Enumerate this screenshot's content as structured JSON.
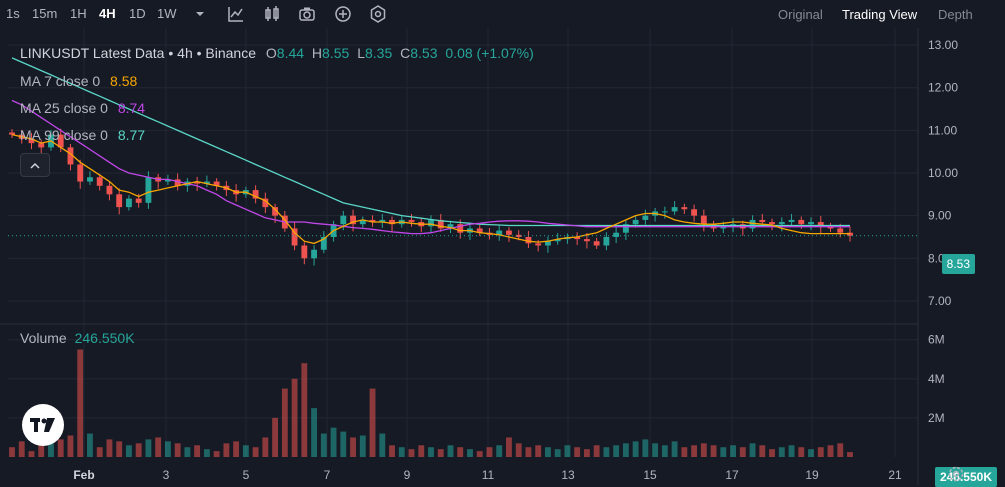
{
  "toolbar": {
    "timeframes": [
      "1s",
      "15m",
      "1H",
      "4H",
      "1D",
      "1W"
    ],
    "active_timeframe": "4H",
    "dropdown_icon": "chevron-down-icon",
    "tools": [
      "chart-type-icon",
      "bar-style-icon",
      "camera-icon",
      "add-indicator-icon",
      "settings-icon"
    ],
    "views": [
      "Original",
      "Trading View",
      "Depth"
    ],
    "active_view": "Trading View"
  },
  "legend": {
    "title": "LINKUSDT Latest Data • 4h • Binance",
    "o_label": "O",
    "o_value": "8.44",
    "h_label": "H",
    "h_value": "8.55",
    "l_label": "L",
    "l_value": "8.35",
    "c_label": "C",
    "c_value": "8.53",
    "change": "0.08 (+1.07%)",
    "ma7_label": "MA 7 close 0",
    "ma7_value": "8.58",
    "ma25_label": "MA 25 close 0",
    "ma25_value": "8.74",
    "ma99_label": "MA 99 close 0",
    "ma99_value": "8.77",
    "collapse_icon": "chevron-up-icon"
  },
  "volume": {
    "label": "Volume",
    "value": "246.550K"
  },
  "price_axis": [
    "13.00",
    "12.00",
    "11.00",
    "10.00",
    "9.00",
    "8.00",
    "7.00"
  ],
  "volume_axis": [
    "6M",
    "4M",
    "2M"
  ],
  "current_price": "8.53",
  "current_volume": "246.550K",
  "time_axis": [
    "Feb",
    "3",
    "5",
    "7",
    "9",
    "11",
    "13",
    "15",
    "17",
    "19",
    "21"
  ],
  "colors": {
    "up": "#26a69a",
    "down": "#ef5350",
    "ma7": "#f7a600",
    "ma25": "#c147e9",
    "ma99": "#5ad7c7",
    "background": "#161a25"
  },
  "chart_data": {
    "type": "candlestick",
    "symbol": "LINKUSDT",
    "interval": "4h",
    "ylim": [
      6.6,
      13.4
    ],
    "closes": [
      10.9,
      10.8,
      10.7,
      10.6,
      10.9,
      10.6,
      10.2,
      9.8,
      9.9,
      9.7,
      9.5,
      9.2,
      9.4,
      9.3,
      9.9,
      9.8,
      9.85,
      9.7,
      9.8,
      9.75,
      9.8,
      9.7,
      9.6,
      9.5,
      9.6,
      9.4,
      9.2,
      9.0,
      8.7,
      8.3,
      8.0,
      8.2,
      8.5,
      8.8,
      9.0,
      8.8,
      8.9,
      8.85,
      8.9,
      8.8,
      8.9,
      8.85,
      8.75,
      8.9,
      8.7,
      8.8,
      8.6,
      8.7,
      8.6,
      8.55,
      8.65,
      8.55,
      8.5,
      8.35,
      8.3,
      8.4,
      8.45,
      8.5,
      8.45,
      8.4,
      8.3,
      8.5,
      8.6,
      8.8,
      8.9,
      9.0,
      9.1,
      9.1,
      9.2,
      9.15,
      9.0,
      8.8,
      8.7,
      8.75,
      8.8,
      8.7,
      8.9,
      8.85,
      8.8,
      8.85,
      8.9,
      8.8,
      8.85,
      8.75,
      8.7,
      8.6,
      8.53
    ],
    "ma7": [
      10.9,
      10.85,
      10.8,
      10.7,
      10.75,
      10.6,
      10.45,
      10.25,
      10.1,
      9.95,
      9.8,
      9.6,
      9.55,
      9.45,
      9.55,
      9.6,
      9.65,
      9.7,
      9.75,
      9.8,
      9.75,
      9.7,
      9.65,
      9.55,
      9.55,
      9.45,
      9.35,
      9.15,
      8.9,
      8.6,
      8.4,
      8.35,
      8.45,
      8.65,
      8.75,
      8.85,
      8.9,
      8.85,
      8.85,
      8.82,
      8.85,
      8.82,
      8.8,
      8.8,
      8.75,
      8.72,
      8.65,
      8.65,
      8.6,
      8.58,
      8.55,
      8.5,
      8.45,
      8.4,
      8.38,
      8.4,
      8.45,
      8.48,
      8.5,
      8.55,
      8.6,
      8.7,
      8.8,
      8.9,
      9.0,
      9.05,
      9.05,
      9.0,
      8.9,
      8.85,
      8.82,
      8.8,
      8.8,
      8.82,
      8.85,
      8.85,
      8.82,
      8.8,
      8.78,
      8.7,
      8.65,
      8.6,
      8.58,
      8.58,
      8.58,
      8.58,
      8.58
    ],
    "ma25": [
      11.7,
      11.6,
      11.45,
      11.3,
      11.15,
      11.0,
      10.85,
      10.7,
      10.55,
      10.4,
      10.25,
      10.1,
      10.0,
      9.95,
      9.9,
      9.85,
      9.85,
      9.8,
      9.75,
      9.7,
      9.6,
      9.5,
      9.35,
      9.25,
      9.15,
      9.05,
      8.95,
      8.9,
      8.85,
      8.85,
      8.85,
      8.82,
      8.8,
      8.78,
      8.75,
      8.72,
      8.7,
      8.68,
      8.65,
      8.62,
      8.6,
      8.58,
      8.58,
      8.6,
      8.65,
      8.7,
      8.75,
      8.8,
      8.82,
      8.85,
      8.87,
      8.88,
      8.88,
      8.87,
      8.85,
      8.82,
      8.8,
      8.78,
      8.76,
      8.74,
      8.74,
      8.74,
      8.74,
      8.74,
      8.74,
      8.74,
      8.74,
      8.74,
      8.74,
      8.74,
      8.74,
      8.74,
      8.74,
      8.74,
      8.74,
      8.74,
      8.74,
      8.74,
      8.74,
      8.74,
      8.74,
      8.74,
      8.74,
      8.74,
      8.74,
      8.74,
      8.74
    ],
    "ma99": [
      12.7,
      12.6,
      12.5,
      12.4,
      12.3,
      12.2,
      12.1,
      12.0,
      11.9,
      11.8,
      11.7,
      11.6,
      11.5,
      11.4,
      11.3,
      11.2,
      11.1,
      11.0,
      10.9,
      10.8,
      10.7,
      10.6,
      10.5,
      10.4,
      10.3,
      10.2,
      10.1,
      10.0,
      9.9,
      9.8,
      9.7,
      9.6,
      9.5,
      9.4,
      9.3,
      9.25,
      9.2,
      9.15,
      9.1,
      9.05,
      9.0,
      8.97,
      8.94,
      8.91,
      8.88,
      8.86,
      8.84,
      8.82,
      8.8,
      8.79,
      8.78,
      8.77,
      8.77,
      8.77,
      8.77,
      8.77,
      8.77,
      8.77,
      8.77,
      8.77,
      8.77,
      8.77,
      8.77,
      8.77,
      8.77,
      8.77,
      8.77,
      8.77,
      8.77,
      8.77,
      8.77,
      8.77,
      8.77,
      8.77,
      8.77,
      8.77,
      8.77,
      8.77,
      8.77,
      8.77,
      8.77,
      8.77,
      8.77,
      8.77,
      8.77,
      8.77,
      8.77
    ],
    "volumes_millions": [
      0.5,
      0.8,
      0.3,
      0.6,
      0.7,
      0.9,
      1.1,
      5.5,
      1.2,
      0.5,
      0.9,
      0.8,
      0.6,
      0.7,
      0.9,
      1.0,
      0.8,
      0.7,
      0.5,
      0.6,
      0.4,
      0.3,
      0.7,
      0.8,
      0.6,
      0.5,
      1.0,
      2.0,
      3.5,
      4.0,
      4.8,
      2.5,
      1.2,
      1.5,
      1.3,
      1.0,
      1.1,
      3.5,
      1.2,
      0.6,
      0.5,
      0.4,
      0.6,
      0.5,
      0.4,
      0.6,
      0.5,
      0.4,
      0.3,
      0.5,
      0.6,
      1.0,
      0.7,
      0.5,
      0.6,
      0.5,
      0.4,
      0.6,
      0.5,
      0.4,
      0.6,
      0.5,
      0.6,
      0.7,
      0.8,
      0.9,
      0.7,
      0.6,
      0.8,
      0.5,
      0.6,
      0.7,
      0.6,
      0.5,
      0.6,
      0.5,
      0.7,
      0.6,
      0.4,
      0.5,
      0.6,
      0.5,
      0.4,
      0.5,
      0.6,
      0.7,
      0.25
    ],
    "volume_ylim": [
      0,
      6.6
    ]
  }
}
